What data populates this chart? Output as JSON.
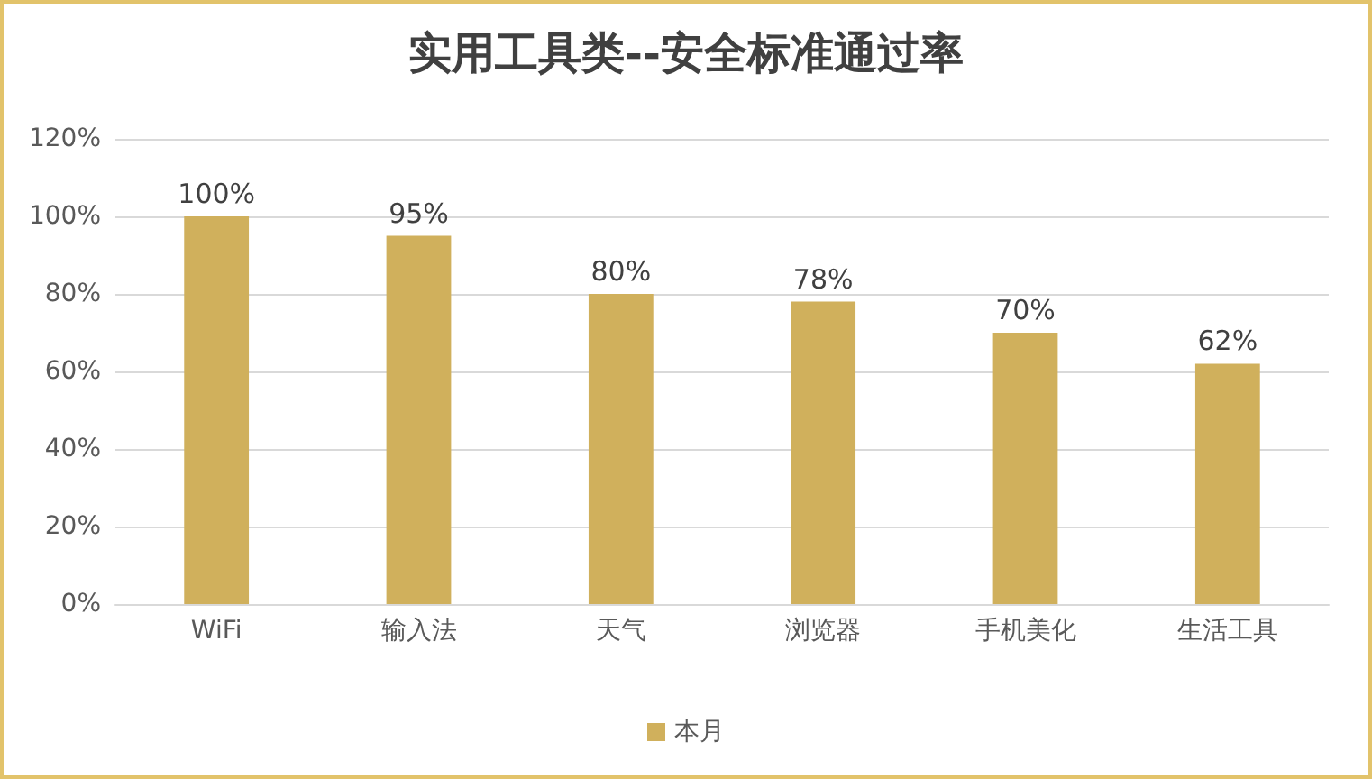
{
  "chart_data": {
    "type": "bar",
    "title": "实用工具类--安全标准通过率",
    "categories": [
      "WiFi",
      "输入法",
      "天气",
      "浏览器",
      "手机美化",
      "生活工具"
    ],
    "series": [
      {
        "name": "本月",
        "color": "#d0b05c",
        "values": [
          100,
          95,
          80,
          78,
          70,
          62
        ],
        "value_labels": [
          "100%",
          "95%",
          "80%",
          "78%",
          "70%",
          "62%"
        ]
      }
    ],
    "ylim": [
      0,
      120
    ],
    "yticks": [
      {
        "value": 0,
        "label": "0%"
      },
      {
        "value": 20,
        "label": "20%"
      },
      {
        "value": 40,
        "label": "40%"
      },
      {
        "value": 60,
        "label": "60%"
      },
      {
        "value": 80,
        "label": "80%"
      },
      {
        "value": 100,
        "label": "100%"
      },
      {
        "value": 120,
        "label": "120%"
      }
    ],
    "grid": "y",
    "legend": "bottom"
  }
}
